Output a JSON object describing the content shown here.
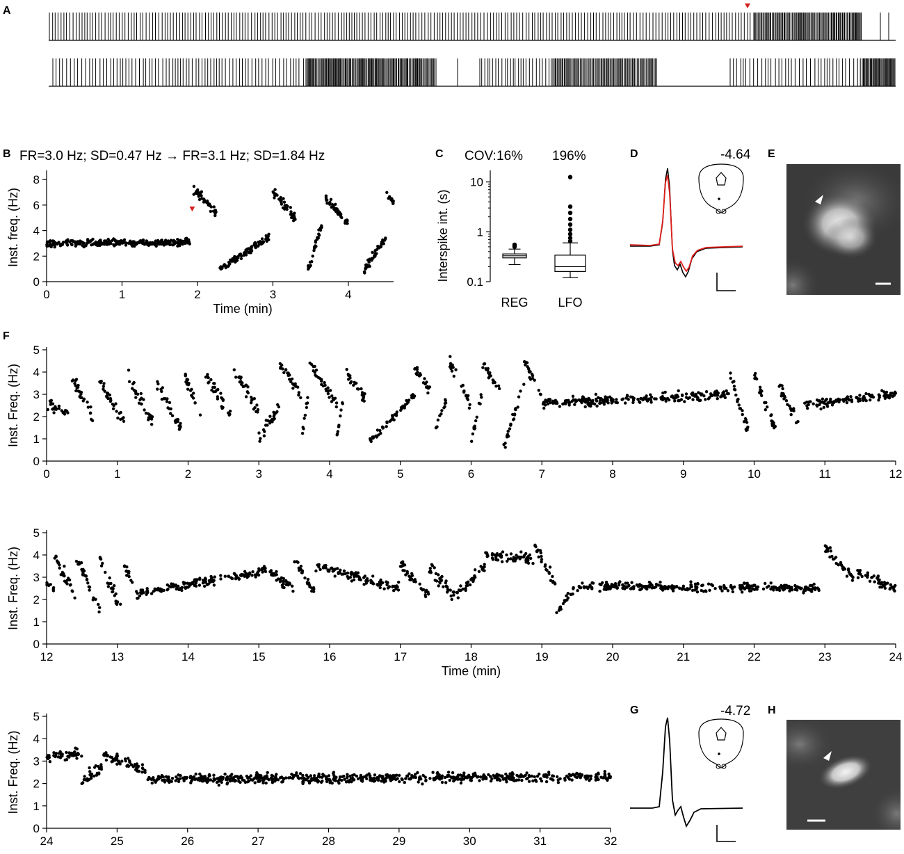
{
  "panel_labels": {
    "A": "A",
    "B": "B",
    "C": "C",
    "D": "D",
    "E": "E",
    "F": "F",
    "G": "G",
    "H": "H"
  },
  "colors": {
    "marker": "#d62020",
    "trace_red": "#e0201c",
    "trace_black": "#000000",
    "image_bg": "#3a3a3a"
  },
  "panel_b": {
    "header": "FR=3.0 Hz; SD=0.47 Hz → FR=3.1 Hz; SD=1.84 Hz"
  },
  "panel_c": {
    "cov_label": "COV:",
    "cov_values": [
      "16%",
      "196%"
    ]
  },
  "panel_d": {
    "coordinate": "-4.64"
  },
  "panel_g": {
    "coordinate": "-4.72"
  },
  "chart_data": [
    {
      "id": "B",
      "type": "scatter",
      "xlabel": "Time (min)",
      "ylabel": "Inst. freq. (Hz)",
      "xlim": [
        0,
        4.6
      ],
      "ylim": [
        0,
        8.5
      ],
      "xticks": [
        0,
        1,
        2,
        3,
        4
      ],
      "yticks": [
        0,
        2,
        4,
        6,
        8
      ],
      "marker_x": 1.93,
      "segments": [
        {
          "x": [
            0,
            1.9
          ],
          "y": [
            3.0,
            3.1
          ],
          "spread": 0.47
        },
        {
          "x": [
            1.95,
            2.25
          ],
          "y": [
            7.2,
            5.5
          ],
          "spread": 0.6
        },
        {
          "x": [
            2.3,
            2.95
          ],
          "y": [
            1.0,
            3.5
          ],
          "spread": 0.5
        },
        {
          "x": [
            3.0,
            3.3
          ],
          "y": [
            7.0,
            5.0
          ],
          "spread": 0.7
        },
        {
          "x": [
            3.45,
            3.65
          ],
          "y": [
            0.5,
            4.5
          ],
          "spread": 0.6
        },
        {
          "x": [
            3.7,
            4.0
          ],
          "y": [
            6.5,
            4.5
          ],
          "spread": 0.6
        },
        {
          "x": [
            4.2,
            4.5
          ],
          "y": [
            0.8,
            3.5
          ],
          "spread": 0.6
        },
        {
          "x": [
            4.5,
            4.6
          ],
          "y": [
            7.0,
            6.2
          ],
          "spread": 0.4
        }
      ]
    },
    {
      "id": "C",
      "type": "box",
      "categories": [
        "REG",
        "LFO"
      ],
      "ylabel": "Interspike int. (s)",
      "yscale": "log",
      "ylim": [
        0.1,
        15
      ],
      "yticks": [
        0.1,
        1,
        10
      ],
      "ytick_labels": [
        "0.1",
        "1",
        "10"
      ],
      "boxes": [
        {
          "whislo": 0.22,
          "q1": 0.3,
          "med": 0.33,
          "q3": 0.36,
          "whishi": 0.45,
          "fliers": [
            0.5,
            0.52,
            0.55
          ]
        },
        {
          "whislo": 0.12,
          "q1": 0.16,
          "med": 0.2,
          "q3": 0.34,
          "whishi": 0.6,
          "fliers": [
            0.65,
            0.75,
            0.9,
            1.1,
            1.4,
            1.8,
            2.4,
            3.2,
            12.5
          ]
        }
      ]
    },
    {
      "id": "F1",
      "type": "scatter",
      "ylabel": "Inst. Freq. (Hz)",
      "xlim": [
        0,
        12
      ],
      "ylim": [
        0,
        5
      ],
      "xticks": [
        0,
        1,
        2,
        3,
        4,
        5,
        6,
        7,
        8,
        9,
        10,
        11,
        12
      ],
      "yticks": [
        0,
        1,
        2,
        3,
        4,
        5
      ],
      "segments": [
        {
          "x": [
            0,
            0.3
          ],
          "y": [
            2.5,
            2.3
          ],
          "spread": 0.5
        },
        {
          "x": [
            0.35,
            0.65
          ],
          "y": [
            3.8,
            2.0
          ],
          "spread": 0.5
        },
        {
          "x": [
            0.75,
            1.1
          ],
          "y": [
            3.5,
            1.8
          ],
          "spread": 0.5
        },
        {
          "x": [
            1.15,
            1.5
          ],
          "y": [
            3.8,
            1.7
          ],
          "spread": 0.5
        },
        {
          "x": [
            1.55,
            1.9
          ],
          "y": [
            3.5,
            1.5
          ],
          "spread": 0.5
        },
        {
          "x": [
            1.95,
            2.2
          ],
          "y": [
            3.8,
            2.0
          ],
          "spread": 0.5
        },
        {
          "x": [
            2.25,
            2.6
          ],
          "y": [
            3.9,
            2.0
          ],
          "spread": 0.5
        },
        {
          "x": [
            2.65,
            3.0
          ],
          "y": [
            4.2,
            2.2
          ],
          "spread": 0.5
        },
        {
          "x": [
            3.0,
            3.3
          ],
          "y": [
            1.0,
            2.5
          ],
          "spread": 0.5
        },
        {
          "x": [
            3.3,
            3.6
          ],
          "y": [
            4.4,
            3.0
          ],
          "spread": 0.5
        },
        {
          "x": [
            3.6,
            3.7
          ],
          "y": [
            1.0,
            3.0
          ],
          "spread": 0.4
        },
        {
          "x": [
            3.72,
            4.1
          ],
          "y": [
            4.4,
            2.5
          ],
          "spread": 0.5
        },
        {
          "x": [
            4.1,
            4.2
          ],
          "y": [
            1.0,
            3.0
          ],
          "spread": 0.4
        },
        {
          "x": [
            4.2,
            4.5
          ],
          "y": [
            4.2,
            2.8
          ],
          "spread": 0.5
        },
        {
          "x": [
            4.55,
            5.2
          ],
          "y": [
            0.8,
            3.0
          ],
          "spread": 0.3
        },
        {
          "x": [
            5.2,
            5.45
          ],
          "y": [
            4.2,
            3.0
          ],
          "spread": 0.4
        },
        {
          "x": [
            5.5,
            5.65
          ],
          "y": [
            1.5,
            2.8
          ],
          "spread": 0.4
        },
        {
          "x": [
            5.7,
            6.0
          ],
          "y": [
            4.4,
            2.5
          ],
          "spread": 0.5
        },
        {
          "x": [
            6.0,
            6.15
          ],
          "y": [
            0.8,
            3.0
          ],
          "spread": 0.4
        },
        {
          "x": [
            6.15,
            6.4
          ],
          "y": [
            4.5,
            3.2
          ],
          "spread": 0.5
        },
        {
          "x": [
            6.45,
            6.75
          ],
          "y": [
            0.5,
            3.5
          ],
          "spread": 0.4
        },
        {
          "x": [
            6.75,
            7.0
          ],
          "y": [
            4.5,
            2.8
          ],
          "spread": 0.4
        },
        {
          "x": [
            7.0,
            9.65
          ],
          "y": [
            2.6,
            3.0
          ],
          "spread": 0.35
        },
        {
          "x": [
            9.65,
            9.95
          ],
          "y": [
            4.0,
            1.0
          ],
          "spread": 0.5
        },
        {
          "x": [
            10.0,
            10.3
          ],
          "y": [
            3.8,
            1.5
          ],
          "spread": 0.5
        },
        {
          "x": [
            10.35,
            10.65
          ],
          "y": [
            3.4,
            1.5
          ],
          "spread": 0.5
        },
        {
          "x": [
            10.7,
            12.0
          ],
          "y": [
            2.5,
            3.0
          ],
          "spread": 0.35
        }
      ]
    },
    {
      "id": "F2",
      "type": "scatter",
      "xlabel": "Time (min)",
      "ylabel": "Inst. Freq. (Hz)",
      "xlim": [
        12,
        24
      ],
      "ylim": [
        0,
        5
      ],
      "xticks": [
        12,
        13,
        14,
        15,
        16,
        17,
        18,
        19,
        20,
        21,
        22,
        23,
        24
      ],
      "yticks": [
        0,
        1,
        2,
        3,
        4,
        5
      ],
      "segments": [
        {
          "x": [
            12,
            12.1
          ],
          "y": [
            2.8,
            2.5
          ],
          "spread": 0.4
        },
        {
          "x": [
            12.1,
            12.4
          ],
          "y": [
            4.0,
            2.2
          ],
          "spread": 0.5
        },
        {
          "x": [
            12.4,
            12.75
          ],
          "y": [
            4.0,
            1.5
          ],
          "spread": 0.5
        },
        {
          "x": [
            12.75,
            13.05
          ],
          "y": [
            3.8,
            1.5
          ],
          "spread": 0.5
        },
        {
          "x": [
            13.1,
            13.3
          ],
          "y": [
            3.5,
            2.2
          ],
          "spread": 0.4
        },
        {
          "x": [
            13.3,
            15.0
          ],
          "y": [
            2.3,
            3.2
          ],
          "spread": 0.35
        },
        {
          "x": [
            15.0,
            15.5
          ],
          "y": [
            3.5,
            2.5
          ],
          "spread": 0.4
        },
        {
          "x": [
            15.5,
            15.8
          ],
          "y": [
            3.8,
            2.2
          ],
          "spread": 0.4
        },
        {
          "x": [
            15.8,
            17.0
          ],
          "y": [
            3.5,
            2.5
          ],
          "spread": 0.4
        },
        {
          "x": [
            17.0,
            17.4
          ],
          "y": [
            3.6,
            2.2
          ],
          "spread": 0.5
        },
        {
          "x": [
            17.4,
            17.8
          ],
          "y": [
            3.5,
            2.0
          ],
          "spread": 0.5
        },
        {
          "x": [
            17.8,
            18.2
          ],
          "y": [
            2.2,
            3.5
          ],
          "spread": 0.4
        },
        {
          "x": [
            18.2,
            18.9
          ],
          "y": [
            4.0,
            3.8
          ],
          "spread": 0.4
        },
        {
          "x": [
            18.9,
            19.2
          ],
          "y": [
            4.5,
            2.5
          ],
          "spread": 0.5
        },
        {
          "x": [
            19.2,
            19.45
          ],
          "y": [
            1.3,
            2.5
          ],
          "spread": 0.4
        },
        {
          "x": [
            19.5,
            22.95
          ],
          "y": [
            2.6,
            2.5
          ],
          "spread": 0.35
        },
        {
          "x": [
            23.0,
            23.4
          ],
          "y": [
            4.3,
            3.0
          ],
          "spread": 0.4
        },
        {
          "x": [
            23.45,
            24.0
          ],
          "y": [
            3.2,
            2.5
          ],
          "spread": 0.4
        }
      ]
    },
    {
      "id": "F3",
      "type": "scatter",
      "ylabel": "Inst. Freq. (Hz)",
      "xlim": [
        24,
        32
      ],
      "ylim": [
        0,
        5
      ],
      "xticks": [
        24,
        25,
        26,
        27,
        28,
        29,
        30,
        31,
        32
      ],
      "yticks": [
        0,
        1,
        2,
        3,
        4,
        5
      ],
      "segments": [
        {
          "x": [
            24,
            24.5
          ],
          "y": [
            3.2,
            3.3
          ],
          "spread": 0.4
        },
        {
          "x": [
            24.5,
            24.8
          ],
          "y": [
            2.0,
            2.8
          ],
          "spread": 0.5
        },
        {
          "x": [
            24.8,
            25.4
          ],
          "y": [
            3.3,
            2.6
          ],
          "spread": 0.4
        },
        {
          "x": [
            25.4,
            32.0
          ],
          "y": [
            2.2,
            2.3
          ],
          "spread": 0.38
        }
      ]
    }
  ]
}
